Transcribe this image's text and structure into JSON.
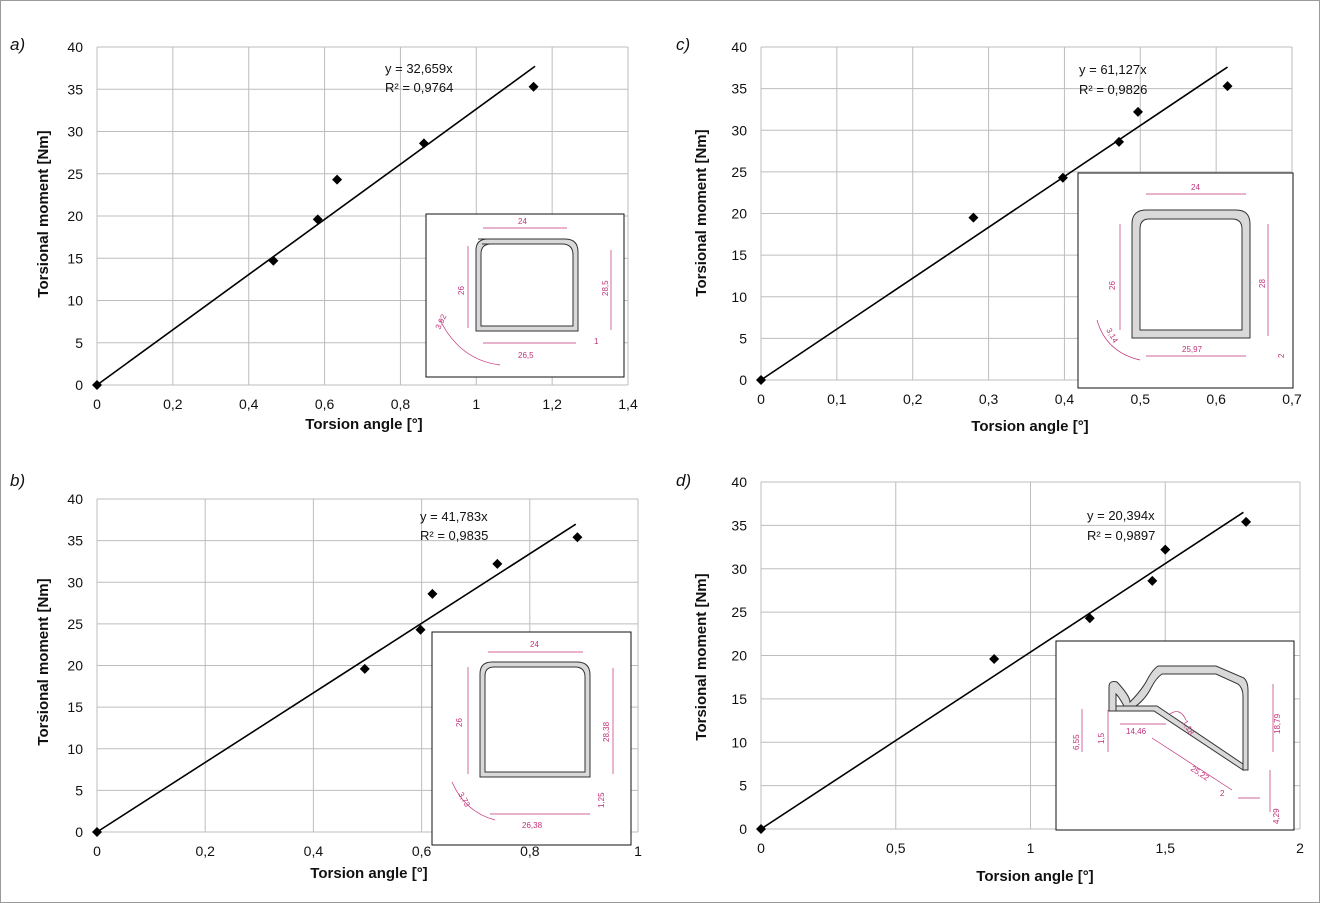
{
  "charts": [
    {
      "letter": "a)",
      "xlabel": "Torsion angle [°]",
      "ylabel": "Torsional moment [Nm]",
      "equation": "y = 32,659x",
      "r2": "R² = 0,9764",
      "xticks": [
        "0",
        "0,2",
        "0,4",
        "0,6",
        "0,8",
        "1",
        "1,2",
        "1,4"
      ],
      "yticks": [
        "0",
        "5",
        "10",
        "15",
        "20",
        "25",
        "30",
        "35",
        "40"
      ],
      "inset_dims": [
        "24",
        "26",
        "28,5",
        "3,92",
        "26,5",
        "1"
      ]
    },
    {
      "letter": "b)",
      "xlabel": "Torsion angle [°]",
      "ylabel": "Torsional moment [Nm]",
      "equation": "y = 41,783x",
      "r2": "R² = 0,9835",
      "xticks": [
        "0",
        "0,2",
        "0,4",
        "0,6",
        "0,8",
        "1"
      ],
      "yticks": [
        "0",
        "5",
        "10",
        "15",
        "20",
        "25",
        "30",
        "35",
        "40"
      ],
      "inset_dims": [
        "24",
        "26",
        "28,38",
        "3,73",
        "26,38",
        "1,25"
      ]
    },
    {
      "letter": "c)",
      "xlabel": "Torsion angle [°]",
      "ylabel": "Torsional moment [Nm]",
      "equation": "y = 61,127x",
      "r2": "R² = 0,9826",
      "xticks": [
        "0",
        "0,1",
        "0,2",
        "0,3",
        "0,4",
        "0,5",
        "0,6",
        "0,7"
      ],
      "yticks": [
        "0",
        "5",
        "10",
        "15",
        "20",
        "25",
        "30",
        "35",
        "40"
      ],
      "inset_dims": [
        "24",
        "26",
        "28",
        "3,14",
        "25,97",
        "2"
      ]
    },
    {
      "letter": "d)",
      "xlabel": "Torsion angle [°]",
      "ylabel": "Torsional moment [Nm]",
      "equation": "y = 20,394x",
      "r2": "R² = 0,9897",
      "xticks": [
        "0",
        "0,5",
        "1",
        "1,5",
        "2"
      ],
      "yticks": [
        "0",
        "5",
        "10",
        "15",
        "20",
        "25",
        "30",
        "35",
        "40"
      ],
      "inset_dims": [
        "6,55",
        "1,5",
        "14,46",
        "1,18",
        "18,79",
        "25,22",
        "2",
        "4,29"
      ]
    }
  ],
  "chart_data": [
    {
      "type": "scatter",
      "xlabel": "Torsion angle [°]",
      "ylabel": "Torsional moment [Nm]",
      "xlim": [
        0,
        1.4
      ],
      "ylim": [
        0,
        40
      ],
      "grid": true,
      "points": [
        [
          0,
          0
        ],
        [
          0.465,
          14.7
        ],
        [
          0.582,
          19.6
        ],
        [
          0.633,
          24.3
        ],
        [
          0.862,
          28.6
        ],
        [
          1.151,
          35.3
        ]
      ],
      "trendline": {
        "slope": 32.659,
        "x_end": 1.155
      },
      "annotations": [
        "y = 32,659x",
        "R² = 0,9764"
      ]
    },
    {
      "type": "scatter",
      "xlabel": "Torsion angle [°]",
      "ylabel": "Torsional moment [Nm]",
      "xlim": [
        0,
        1
      ],
      "ylim": [
        0,
        40
      ],
      "grid": true,
      "points": [
        [
          0,
          0
        ],
        [
          0.495,
          19.6
        ],
        [
          0.598,
          24.3
        ],
        [
          0.62,
          28.6
        ],
        [
          0.74,
          32.2
        ],
        [
          0.888,
          35.4
        ]
      ],
      "trendline": {
        "slope": 41.783,
        "x_end": 0.885
      },
      "annotations": [
        "y = 41,783x",
        "R² = 0,9835"
      ]
    },
    {
      "type": "scatter",
      "xlabel": "Torsion angle [°]",
      "ylabel": "Torsional moment [Nm]",
      "xlim": [
        0,
        0.7
      ],
      "ylim": [
        0,
        40
      ],
      "grid": true,
      "points": [
        [
          0,
          0
        ],
        [
          0.28,
          19.5
        ],
        [
          0.398,
          24.3
        ],
        [
          0.472,
          28.6
        ],
        [
          0.497,
          32.2
        ],
        [
          0.615,
          35.3
        ]
      ],
      "trendline": {
        "slope": 61.127,
        "x_end": 0.615
      },
      "annotations": [
        "y = 61,127x",
        "R² = 0,9826"
      ]
    },
    {
      "type": "scatter",
      "xlabel": "Torsion angle [°]",
      "ylabel": "Torsional moment [Nm]",
      "xlim": [
        0,
        2
      ],
      "ylim": [
        0,
        40
      ],
      "grid": true,
      "points": [
        [
          0,
          0
        ],
        [
          0.865,
          19.6
        ],
        [
          1.22,
          24.3
        ],
        [
          1.452,
          28.6
        ],
        [
          1.5,
          32.2
        ],
        [
          1.8,
          35.4
        ]
      ],
      "trendline": {
        "slope": 20.394,
        "x_end": 1.79
      },
      "annotations": [
        "y = 20,394x",
        "R² = 0,9897"
      ]
    }
  ]
}
